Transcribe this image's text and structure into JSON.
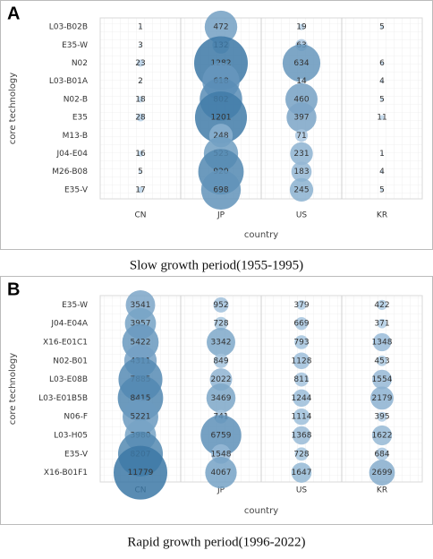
{
  "chart_data": [
    {
      "type": "bubble",
      "panel": "A",
      "caption": "Slow growth period(1955-1995)",
      "x_label": "country",
      "y_label": "core technology",
      "x_categories": [
        "CN",
        "JP",
        "US",
        "KR"
      ],
      "y_categories": [
        "L03-B02B",
        "E35-W",
        "N02",
        "L03-B01A",
        "N02-B",
        "E35",
        "M13-B",
        "J04-E04",
        "M26-B08",
        "E35-V"
      ],
      "values": [
        [
          1,
          3,
          23,
          2,
          18,
          28,
          null,
          16,
          5,
          17
        ],
        [
          472,
          132,
          1282,
          618,
          802,
          1201,
          248,
          523,
          920,
          698
        ],
        [
          19,
          63,
          634,
          14,
          460,
          397,
          71,
          231,
          183,
          245
        ],
        [
          5,
          null,
          6,
          4,
          5,
          11,
          null,
          1,
          4,
          5
        ]
      ],
      "color_range": [
        "#c9def1",
        "#3c78a6"
      ],
      "grid": true
    },
    {
      "type": "bubble",
      "panel": "B",
      "caption": "Rapid growth period(1996-2022)",
      "x_label": "country",
      "y_label": "core technology",
      "x_categories": [
        "CN",
        "JP",
        "US",
        "KR"
      ],
      "y_categories": [
        "E35-W",
        "J04-E04A",
        "X16-E01C1",
        "N02-B01",
        "L03-E08B",
        "L03-E01B5B",
        "N06-F",
        "L03-H05",
        "E35-V",
        "X16-B01F1"
      ],
      "values": [
        [
          3541,
          3957,
          5422,
          4311,
          7885,
          8415,
          5221,
          3980,
          8207,
          11779
        ],
        [
          952,
          728,
          3342,
          849,
          2022,
          3469,
          741,
          6759,
          1548,
          4067
        ],
        [
          379,
          669,
          793,
          1128,
          811,
          1244,
          1114,
          1368,
          728,
          1647
        ],
        [
          422,
          371,
          1348,
          453,
          1554,
          2179,
          395,
          1622,
          684,
          2699
        ]
      ],
      "color_range": [
        "#c9def1",
        "#3c78a6"
      ],
      "grid": true
    }
  ]
}
